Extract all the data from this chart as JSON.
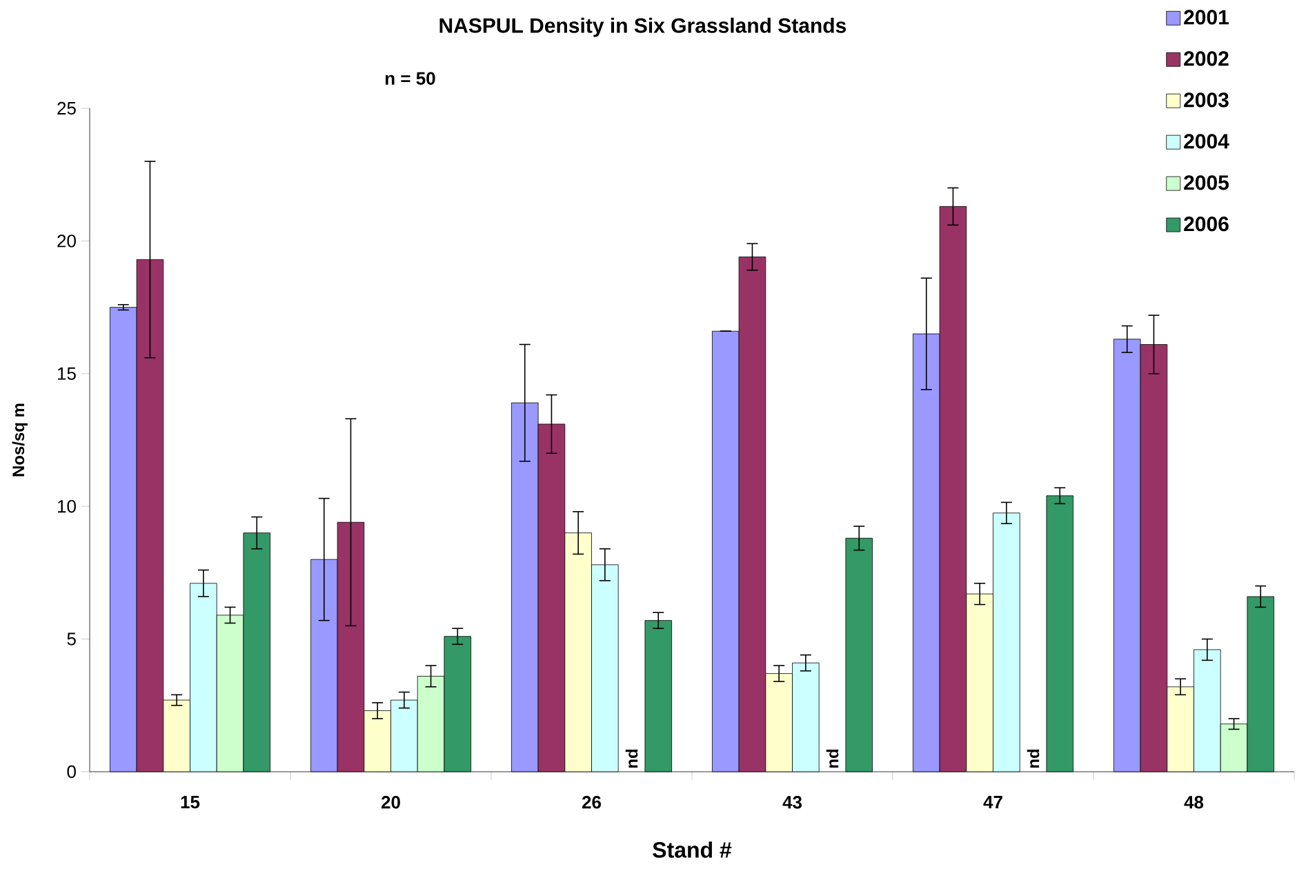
{
  "chart_data": {
    "type": "bar",
    "title": "NASPUL Density in Six Grassland Stands",
    "subtitle": "n = 50",
    "xlabel": "Stand #",
    "ylabel": "Nos/sq m",
    "categories": [
      "15",
      "20",
      "26",
      "43",
      "47",
      "48"
    ],
    "series": [
      {
        "name": "2001",
        "color": "#9999ff",
        "values": [
          17.5,
          8.0,
          13.9,
          16.6,
          16.5,
          16.3
        ],
        "errors": [
          0.1,
          2.3,
          2.2,
          0,
          2.1,
          0.5
        ]
      },
      {
        "name": "2002",
        "color": "#993366",
        "values": [
          19.3,
          9.4,
          13.1,
          19.4,
          21.3,
          16.1
        ],
        "errors": [
          3.7,
          3.9,
          1.1,
          0.5,
          0.7,
          1.1
        ]
      },
      {
        "name": "2003",
        "color": "#ffffcc",
        "values": [
          2.7,
          2.3,
          9.0,
          3.7,
          6.7,
          3.2
        ],
        "errors": [
          0.2,
          0.3,
          0.8,
          0.3,
          0.4,
          0.3
        ]
      },
      {
        "name": "2004",
        "color": "#ccffff",
        "values": [
          7.1,
          2.7,
          7.8,
          4.1,
          9.75,
          4.6
        ],
        "errors": [
          0.5,
          0.3,
          0.6,
          0.3,
          0.4,
          0.4
        ]
      },
      {
        "name": "2005",
        "color": "#ccffcc",
        "values": [
          5.9,
          3.6,
          null,
          null,
          null,
          1.8
        ],
        "errors": [
          0.3,
          0.4,
          null,
          null,
          null,
          0.2
        ]
      },
      {
        "name": "2006",
        "color": "#339966",
        "values": [
          9.0,
          5.1,
          5.7,
          8.8,
          10.4,
          6.6
        ],
        "errors": [
          0.6,
          0.3,
          0.3,
          0.45,
          0.3,
          0.4
        ]
      }
    ],
    "annotations": [
      {
        "text": "nd",
        "x": "26",
        "y": 0
      },
      {
        "text": "nd",
        "x": "43",
        "y": 0
      },
      {
        "text": "nd",
        "x": "47",
        "y": 0
      }
    ],
    "ylim": [
      0,
      25
    ],
    "yticks": [
      0,
      5,
      10,
      15,
      20,
      25
    ],
    "grid": false,
    "legend": "top right"
  }
}
